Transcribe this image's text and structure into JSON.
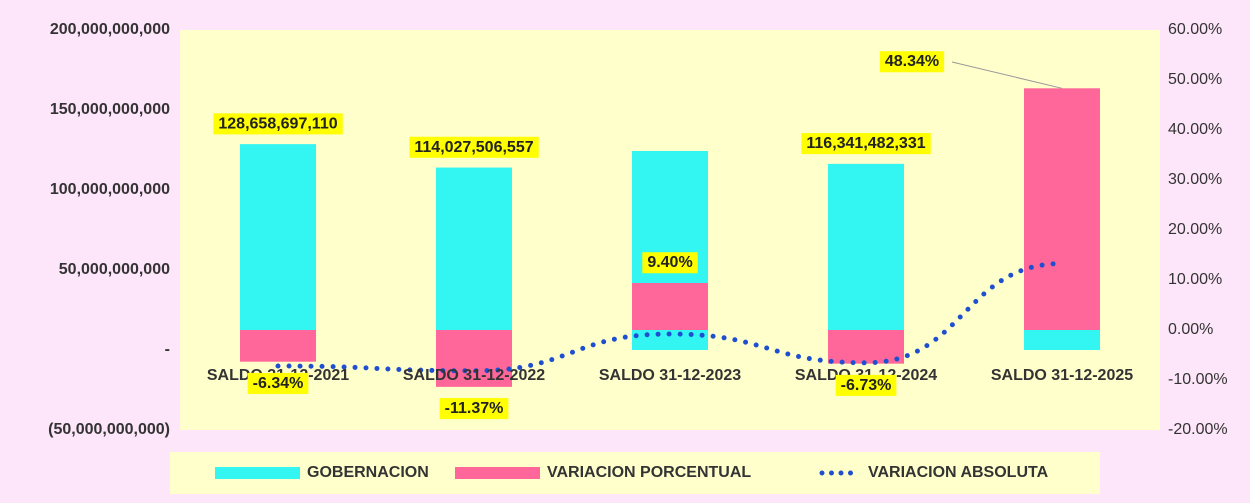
{
  "chart_data": {
    "type": "combo",
    "categories": [
      "SALDO 31-12-2021",
      "SALDO 31-12-2022",
      "SALDO 31-12-2023",
      "SALDO 31-12-2024",
      "SALDO 31-12-2025"
    ],
    "series": [
      {
        "name": "GOBERNACION",
        "type": "bar",
        "color": "#33f5f2",
        "axis": "y",
        "values": [
          128658697110,
          114027506557,
          124400000000,
          116341482331,
          111000000000
        ],
        "value_labels": [
          "128,658,697,110",
          "114,027,506,557",
          null,
          "116,341,482,331",
          null
        ]
      },
      {
        "name": "VARIACION PORCENTUAL",
        "type": "bar",
        "color": "#ff6699",
        "axis": "y2",
        "values": [
          -6.34,
          -11.37,
          9.4,
          -6.73,
          48.34
        ],
        "value_labels": [
          "-6.34%",
          "-11.37%",
          "9.40%",
          "-6.73%",
          "48.34%"
        ]
      },
      {
        "name": "VARIACION ABSOLUTA",
        "type": "line",
        "color": "#1f4fd1",
        "axis": "y",
        "values": [
          -10000000000,
          -13000000000,
          10000000000,
          -8000000000,
          54000000000
        ]
      }
    ],
    "ylim": [
      -50000000000,
      200000000000
    ],
    "yticks": [
      {
        "value": -50000000000,
        "label": "(50,000,000,000)"
      },
      {
        "value": 0,
        "label": "-"
      },
      {
        "value": 50000000000,
        "label": "50,000,000,000"
      },
      {
        "value": 100000000000,
        "label": "100,000,000,000"
      },
      {
        "value": 150000000000,
        "label": "150,000,000,000"
      },
      {
        "value": 200000000000,
        "label": "200,000,000,000"
      }
    ],
    "y2lim": [
      -20,
      60
    ],
    "y2ticks": [
      {
        "value": -20,
        "label": "-20.00%"
      },
      {
        "value": -10,
        "label": "-10.00%"
      },
      {
        "value": 0,
        "label": "0.00%"
      },
      {
        "value": 10,
        "label": "10.00%"
      },
      {
        "value": 20,
        "label": "20.00%"
      },
      {
        "value": 30,
        "label": "30.00%"
      },
      {
        "value": 40,
        "label": "40.00%"
      },
      {
        "value": 50,
        "label": "50.00%"
      },
      {
        "value": 60,
        "label": "60.00%"
      }
    ],
    "legend": "bottom"
  }
}
